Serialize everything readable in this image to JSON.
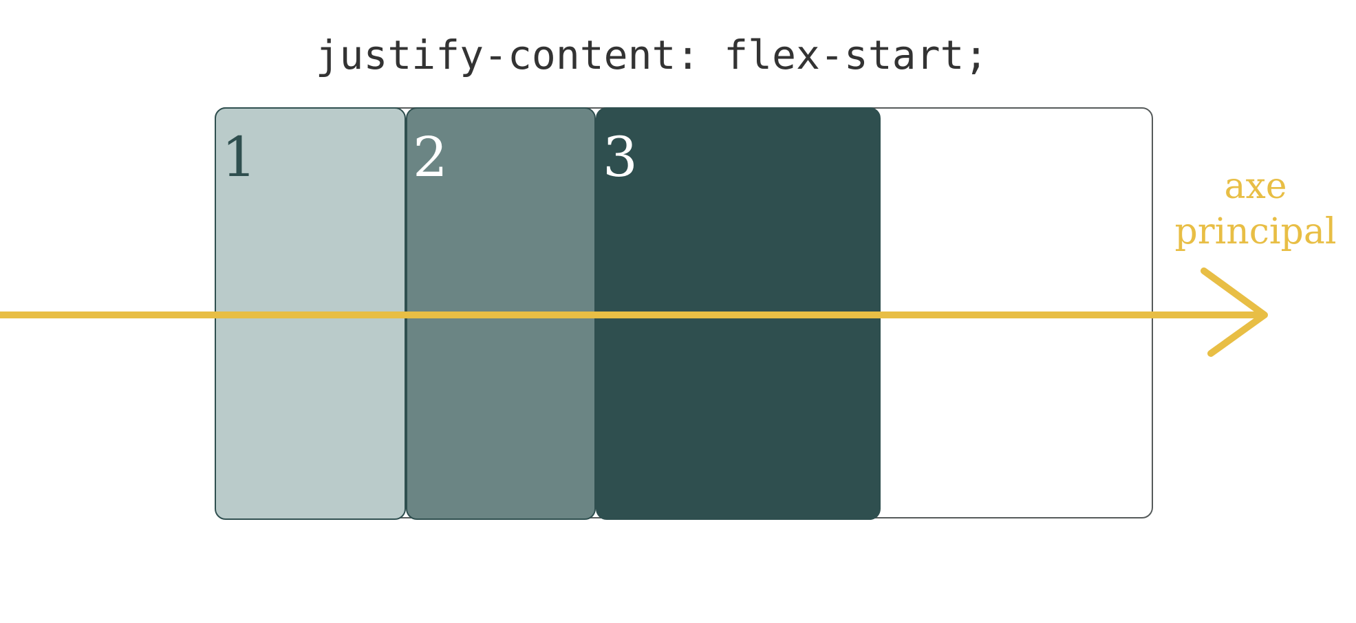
{
  "title": "justify-content: flex-start;",
  "items": [
    {
      "label": "1",
      "color": "#bacbca"
    },
    {
      "label": "2",
      "color": "#6b8584"
    },
    {
      "label": "3",
      "color": "#2f4f4f"
    }
  ],
  "axis": {
    "label_line1": "axe",
    "label_line2": "principal",
    "color": "#e8be45"
  }
}
